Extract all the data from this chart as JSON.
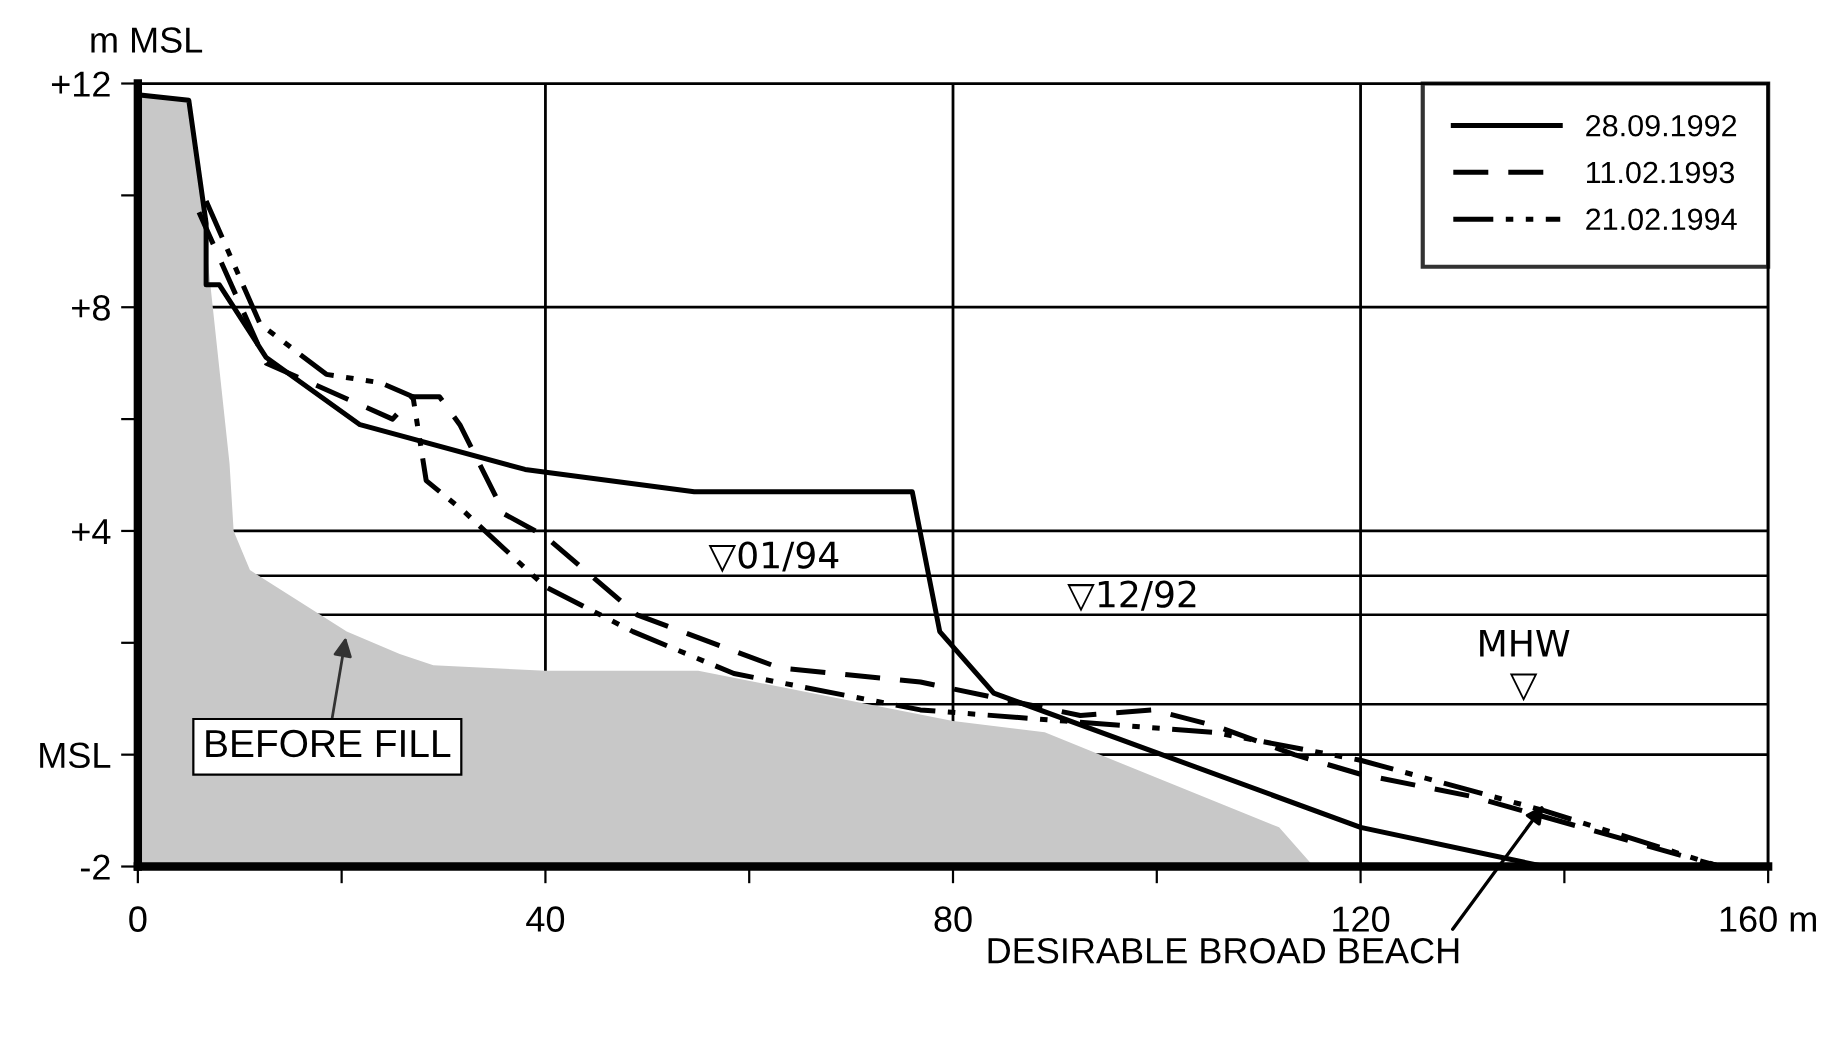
{
  "chart_data": {
    "type": "line",
    "ylabel": "m MSL",
    "xlim": [
      0,
      160
    ],
    "ylim": [
      -2,
      12
    ],
    "xticks": [
      0,
      {
        "value": 20,
        "label": null
      },
      40,
      {
        "value": 60,
        "label": null
      },
      80,
      {
        "value": 100,
        "label": null
      },
      120,
      {
        "value": 140,
        "label": null
      },
      {
        "value": 160,
        "label": "160 m"
      }
    ],
    "yticks": [
      {
        "value": -2,
        "label": "-2"
      },
      {
        "value": 0,
        "label": "MSL"
      },
      {
        "value": 2,
        "label": null
      },
      {
        "value": 4,
        "label": "+4"
      },
      {
        "value": 6,
        "label": null
      },
      {
        "value": 8,
        "label": "+8"
      },
      {
        "value": 10,
        "label": null
      },
      {
        "value": 12,
        "label": "+12"
      }
    ],
    "grid": true,
    "legend": "top right",
    "series": [
      {
        "name": "BEFORE FILL",
        "type": "area",
        "color": "#c8c8c8",
        "x": [
          0,
          0,
          5,
          6,
          9,
          9.4,
          11,
          20.5,
          25.7,
          29,
          40,
          55,
          72.8,
          80,
          89,
          112,
          115.4
        ],
        "values": [
          -2,
          11.8,
          11.7,
          10.3,
          5.2,
          4.0,
          3.3,
          2.2,
          1.8,
          1.6,
          1.5,
          1.5,
          0.86,
          0.6,
          0.4,
          -1.3,
          -2
        ]
      },
      {
        "name": "28.09.1992",
        "color": "#000000",
        "line_style": "solid",
        "x": [
          0,
          5,
          6.7,
          6.7,
          8,
          12.6,
          21.8,
          38,
          54.6,
          76,
          78.7,
          84,
          120,
          138
        ],
        "values": [
          11.8,
          11.7,
          9.5,
          8.4,
          8.4,
          7.1,
          5.9,
          5.1,
          4.7,
          4.7,
          2.2,
          1.1,
          -1.3,
          -2
        ]
      },
      {
        "name": "11.02.1993",
        "color": "#000000",
        "line_style": "dashed",
        "x": [
          6,
          12.6,
          25,
          27,
          29.6,
          31.6,
          36,
          40,
          49,
          63,
          76.8,
          84.6,
          92.5,
          99.7,
          106,
          113.5,
          120,
          131,
          155.3
        ],
        "values": [
          9.7,
          7.0,
          6.0,
          6.4,
          6.4,
          5.9,
          4.3,
          3.9,
          2.5,
          1.55,
          1.3,
          1.0,
          0.7,
          0.8,
          0.5,
          0,
          -0.35,
          -0.75,
          -2
        ]
      },
      {
        "name": "21.02.1994",
        "color": "#000000",
        "line_style": "dashdotdot",
        "x": [
          6.7,
          12,
          18.5,
          23.8,
          27,
          28.3,
          32,
          40,
          48.6,
          58.5,
          76.8,
          91,
          105.6,
          120,
          138,
          155.3
        ],
        "values": [
          9.9,
          7.7,
          6.8,
          6.65,
          6.4,
          4.9,
          4.35,
          3.0,
          2.2,
          1.45,
          0.8,
          0.6,
          0.4,
          -0.1,
          -1.0,
          -2
        ]
      }
    ],
    "ref_lines": [
      {
        "axis": "y",
        "value": 3.2,
        "label": "▽01/94",
        "color": "#000000"
      },
      {
        "axis": "y",
        "value": 2.5,
        "label": "▽12/92",
        "color": "#000000"
      },
      {
        "axis": "y",
        "value": 0.9,
        "label": "MHW\n▽",
        "color": "#000000"
      }
    ],
    "annotations": [
      {
        "text": "DESIRABLE BROAD BEACH",
        "x": 138,
        "y": -0.9
      }
    ]
  }
}
